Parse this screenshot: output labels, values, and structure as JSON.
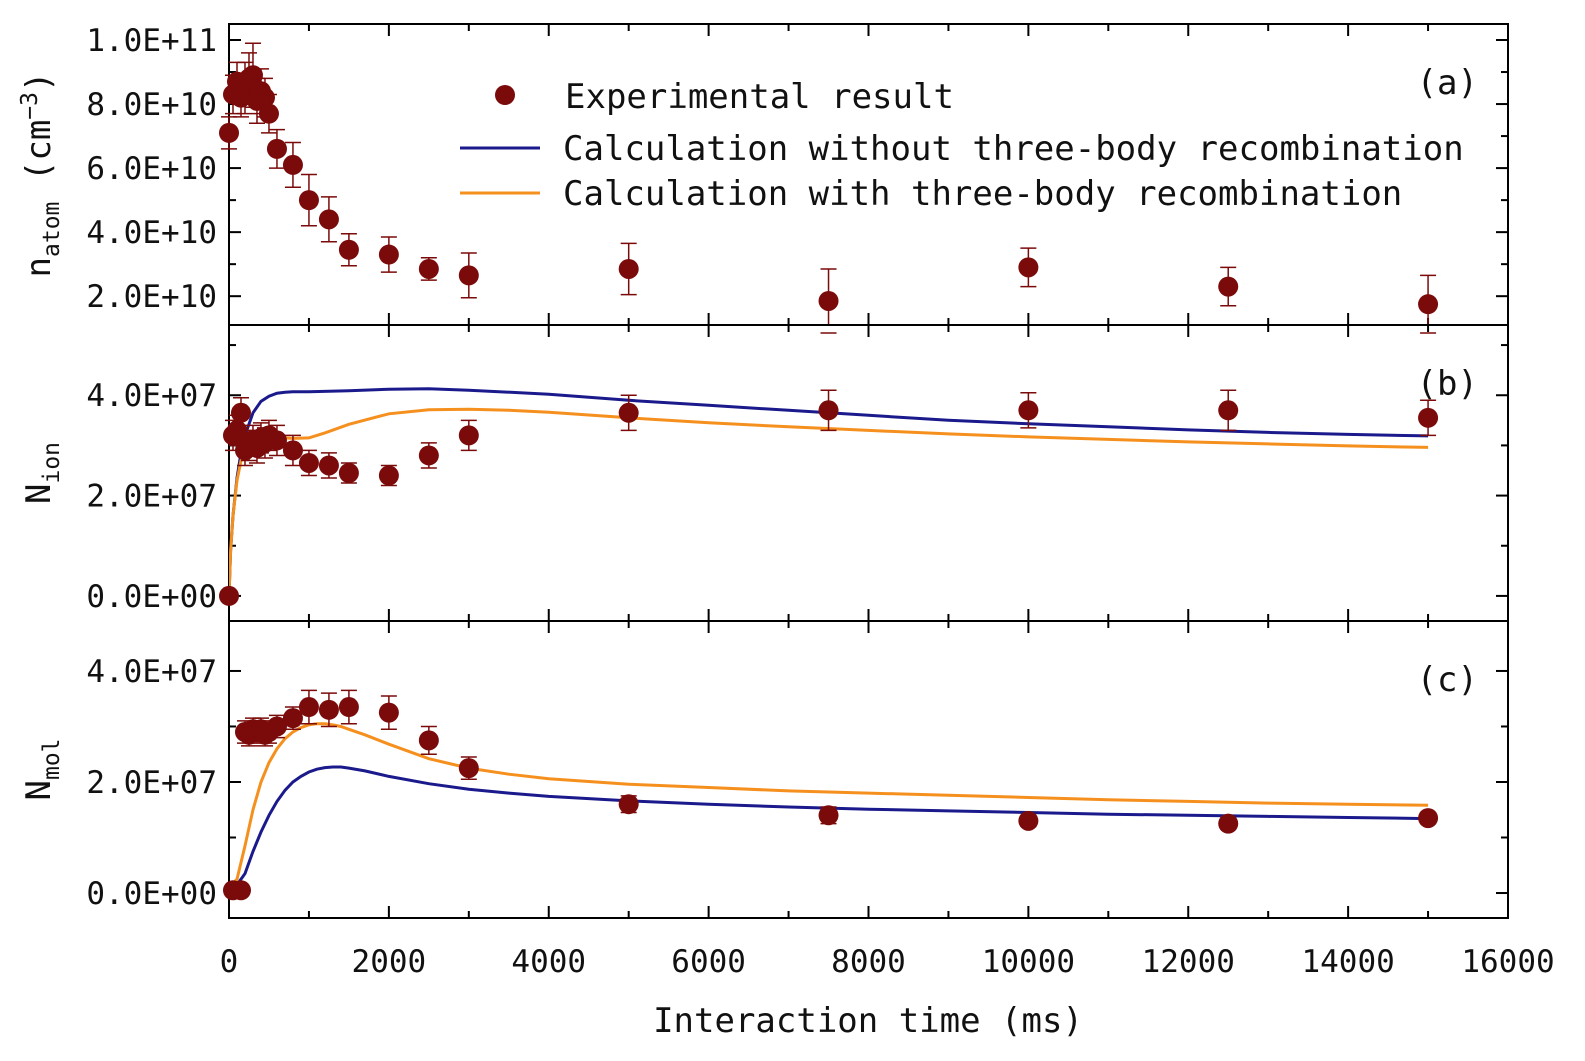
{
  "colors": {
    "experimental": "#7b0a0a",
    "without_3body": "#1a1a8c",
    "with_3body": "#f5901e",
    "axes": "#000000"
  },
  "legend": {
    "items": [
      {
        "label": "Experimental result",
        "marker": "circle",
        "color": "#7b0a0a"
      },
      {
        "label": "Calculation without three-body recombination",
        "marker": "line",
        "color": "#1a1a8c"
      },
      {
        "label": "Calculation with three-body recombination",
        "marker": "line",
        "color": "#f5901e"
      }
    ]
  },
  "xaxis": {
    "title": "Interaction time (ms)",
    "range": [
      0,
      16000
    ],
    "ticks": [
      0,
      2000,
      4000,
      6000,
      8000,
      10000,
      12000,
      14000,
      16000
    ],
    "tick_labels": [
      "0",
      "2000",
      "4000",
      "6000",
      "8000",
      "10000",
      "12000",
      "14000",
      "16000"
    ]
  },
  "chart_data": [
    {
      "type": "scatter",
      "panel": "(a)",
      "ylabel": {
        "base": "n",
        "sub": "atom",
        "paren_open": "(cm",
        "sup": "−3",
        "paren_close": ")"
      },
      "ylim": [
        11000000000.0,
        105000000000.0
      ],
      "yticks": [
        20000000000.0,
        40000000000.0,
        60000000000.0,
        80000000000.0,
        100000000000.0
      ],
      "ytick_labels": [
        "2.0E+10",
        "4.0E+10",
        "6.0E+10",
        "8.0E+10",
        "1.0E+11"
      ],
      "series": [
        {
          "name": "Experimental result",
          "points": [
            {
              "x": 0,
              "y": 71000000000.0,
              "err": 5000000000.0
            },
            {
              "x": 50,
              "y": 83000000000.0,
              "err": 6000000000.0
            },
            {
              "x": 100,
              "y": 87000000000.0,
              "err": 6000000000.0
            },
            {
              "x": 150,
              "y": 82000000000.0,
              "err": 6000000000.0
            },
            {
              "x": 200,
              "y": 85000000000.0,
              "err": 8000000000.0
            },
            {
              "x": 250,
              "y": 88000000000.0,
              "err": 8000000000.0
            },
            {
              "x": 300,
              "y": 89000000000.0,
              "err": 10000000000.0
            },
            {
              "x": 350,
              "y": 81000000000.0,
              "err": 7000000000.0
            },
            {
              "x": 400,
              "y": 84000000000.0,
              "err": 7000000000.0
            },
            {
              "x": 450,
              "y": 82000000000.0,
              "err": 6000000000.0
            },
            {
              "x": 500,
              "y": 77000000000.0,
              "err": 6000000000.0
            },
            {
              "x": 600,
              "y": 66000000000.0,
              "err": 6000000000.0
            },
            {
              "x": 800,
              "y": 61000000000.0,
              "err": 7000000000.0
            },
            {
              "x": 1000,
              "y": 50000000000.0,
              "err": 8000000000.0
            },
            {
              "x": 1250,
              "y": 44000000000.0,
              "err": 7000000000.0
            },
            {
              "x": 1500,
              "y": 34500000000.0,
              "err": 5000000000.0
            },
            {
              "x": 2000,
              "y": 33000000000.0,
              "err": 5500000000.0
            },
            {
              "x": 2500,
              "y": 28500000000.0,
              "err": 3500000000.0
            },
            {
              "x": 3000,
              "y": 26500000000.0,
              "err": 7000000000.0
            },
            {
              "x": 5000,
              "y": 28500000000.0,
              "err": 8000000000.0
            },
            {
              "x": 7500,
              "y": 18500000000.0,
              "err": 10000000000.0
            },
            {
              "x": 10000,
              "y": 29000000000.0,
              "err": 6000000000.0
            },
            {
              "x": 12500,
              "y": 23000000000.0,
              "err": 6000000000.0
            },
            {
              "x": 15000,
              "y": 17500000000.0,
              "err": 9000000000.0
            }
          ]
        }
      ]
    },
    {
      "type": "line",
      "panel": "(b)",
      "ylabel": {
        "base": "N",
        "sub": "ion"
      },
      "ylim": [
        -5000000.0,
        54000000.0
      ],
      "yticks": [
        0,
        20000000.0,
        40000000.0
      ],
      "ytick_labels": [
        "0.0E+00",
        "2.0E+07",
        "4.0E+07"
      ],
      "series": [
        {
          "name": "Experimental result",
          "kind": "scatter",
          "points": [
            {
              "x": 0,
              "y": 0,
              "err": 0
            },
            {
              "x": 50,
              "y": 32000000.0,
              "err": 3000000.0
            },
            {
              "x": 100,
              "y": 33000000.0,
              "err": 3000000.0
            },
            {
              "x": 150,
              "y": 36500000.0,
              "err": 3000000.0
            },
            {
              "x": 200,
              "y": 29000000.0,
              "err": 3000000.0
            },
            {
              "x": 250,
              "y": 30000000.0,
              "err": 3000000.0
            },
            {
              "x": 300,
              "y": 31000000.0,
              "err": 3000000.0
            },
            {
              "x": 350,
              "y": 29500000.0,
              "err": 3000000.0
            },
            {
              "x": 400,
              "y": 31500000.0,
              "err": 3000000.0
            },
            {
              "x": 450,
              "y": 30500000.0,
              "err": 3000000.0
            },
            {
              "x": 500,
              "y": 32000000.0,
              "err": 3000000.0
            },
            {
              "x": 600,
              "y": 31000000.0,
              "err": 3000000.0
            },
            {
              "x": 800,
              "y": 29000000.0,
              "err": 3000000.0
            },
            {
              "x": 1000,
              "y": 26500000.0,
              "err": 2500000.0
            },
            {
              "x": 1250,
              "y": 26000000.0,
              "err": 2500000.0
            },
            {
              "x": 1500,
              "y": 24500000.0,
              "err": 2000000.0
            },
            {
              "x": 2000,
              "y": 24000000.0,
              "err": 2000000.0
            },
            {
              "x": 2500,
              "y": 28000000.0,
              "err": 2500000.0
            },
            {
              "x": 3000,
              "y": 32000000.0,
              "err": 3000000.0
            },
            {
              "x": 5000,
              "y": 36500000.0,
              "err": 3500000.0
            },
            {
              "x": 7500,
              "y": 37000000.0,
              "err": 4000000.0
            },
            {
              "x": 10000,
              "y": 37000000.0,
              "err": 3500000.0
            },
            {
              "x": 12500,
              "y": 37000000.0,
              "err": 4000000.0
            },
            {
              "x": 15000,
              "y": 35500000.0,
              "err": 3500000.0
            }
          ]
        },
        {
          "name": "Calculation without three-body recombination",
          "kind": "line",
          "x": [
            0,
            20,
            50,
            100,
            150,
            200,
            300,
            400,
            500,
            600,
            700,
            800,
            1000,
            1500,
            2000,
            2500,
            3000,
            4000,
            5000,
            6000,
            7000,
            8000,
            9000,
            10000,
            11000,
            12000,
            13000,
            14000,
            15000
          ],
          "y": [
            0,
            9000000.0,
            16000000.0,
            23500000.0,
            28500000.0,
            32000000.0,
            36500000.0,
            38800000.0,
            39800000.0,
            40400000.0,
            40600000.0,
            40700000.0,
            40700000.0,
            40900000.0,
            41200000.0,
            41300000.0,
            41000000.0,
            40200000.0,
            39000000.0,
            38000000.0,
            37000000.0,
            36000000.0,
            35000000.0,
            34300000.0,
            33700000.0,
            33100000.0,
            32600000.0,
            32200000.0,
            31900000.0
          ]
        },
        {
          "name": "Calculation with three-body recombination",
          "kind": "line",
          "x": [
            0,
            20,
            50,
            100,
            150,
            200,
            300,
            400,
            500,
            600,
            700,
            800,
            1000,
            1200,
            1500,
            2000,
            2500,
            3000,
            3500,
            4000,
            5000,
            6000,
            7000,
            8000,
            9000,
            10000,
            11000,
            12000,
            13000,
            14000,
            15000
          ],
          "y": [
            0,
            9000000.0,
            16000000.0,
            23000000.0,
            27000000.0,
            29500000.0,
            31500000.0,
            32000000.0,
            32000000.0,
            31800000.0,
            31500000.0,
            31400000.0,
            31500000.0,
            32500000.0,
            34200000.0,
            36300000.0,
            37100000.0,
            37200000.0,
            37000000.0,
            36600000.0,
            35500000.0,
            34500000.0,
            33700000.0,
            33000000.0,
            32300000.0,
            31700000.0,
            31200000.0,
            30700000.0,
            30300000.0,
            29900000.0,
            29600000.0
          ]
        }
      ]
    },
    {
      "type": "line",
      "panel": "(c)",
      "ylabel": {
        "base": "N",
        "sub": "mol"
      },
      "ylim": [
        -4500000.0,
        49000000.0
      ],
      "yticks": [
        0,
        20000000.0,
        40000000.0
      ],
      "ytick_labels": [
        "0.0E+00",
        "2.0E+07",
        "4.0E+07"
      ],
      "series": [
        {
          "name": "Experimental result",
          "kind": "scatter",
          "points": [
            {
              "x": 50,
              "y": 500000.0,
              "err": 0
            },
            {
              "x": 150,
              "y": 500000.0,
              "err": 0
            },
            {
              "x": 200,
              "y": 29000000.0,
              "err": 2000000.0
            },
            {
              "x": 250,
              "y": 28500000.0,
              "err": 2000000.0
            },
            {
              "x": 300,
              "y": 29500000.0,
              "err": 2000000.0
            },
            {
              "x": 350,
              "y": 29000000.0,
              "err": 2000000.0
            },
            {
              "x": 400,
              "y": 29500000.0,
              "err": 2000000.0
            },
            {
              "x": 450,
              "y": 28500000.0,
              "err": 2000000.0
            },
            {
              "x": 500,
              "y": 29000000.0,
              "err": 2000000.0
            },
            {
              "x": 600,
              "y": 30000000.0,
              "err": 2000000.0
            },
            {
              "x": 800,
              "y": 31500000.0,
              "err": 2000000.0
            },
            {
              "x": 1000,
              "y": 33500000.0,
              "err": 3000000.0
            },
            {
              "x": 1250,
              "y": 33000000.0,
              "err": 3000000.0
            },
            {
              "x": 1500,
              "y": 33500000.0,
              "err": 3000000.0
            },
            {
              "x": 2000,
              "y": 32500000.0,
              "err": 3000000.0
            },
            {
              "x": 2500,
              "y": 27500000.0,
              "err": 2500000.0
            },
            {
              "x": 3000,
              "y": 22500000.0,
              "err": 2000000.0
            },
            {
              "x": 5000,
              "y": 16000000.0,
              "err": 1500000.0
            },
            {
              "x": 7500,
              "y": 14000000.0,
              "err": 1500000.0
            },
            {
              "x": 10000,
              "y": 13000000.0,
              "err": 1000000.0
            },
            {
              "x": 12500,
              "y": 12500000.0,
              "err": 1000000.0
            },
            {
              "x": 15000,
              "y": 13500000.0,
              "err": 1000000.0
            }
          ]
        },
        {
          "name": "Calculation without three-body recombination",
          "kind": "line",
          "x": [
            0,
            100,
            200,
            300,
            400,
            500,
            600,
            700,
            800,
            900,
            1000,
            1100,
            1200,
            1300,
            1400,
            1500,
            1700,
            2000,
            2500,
            3000,
            3500,
            4000,
            5000,
            6000,
            7000,
            8000,
            9000,
            10000,
            11000,
            12000,
            13000,
            14000,
            15000
          ],
          "y": [
            1000000.0,
            1500000.0,
            3500000.0,
            7500000.0,
            11000000.0,
            14000000.0,
            16500000.0,
            18500000.0,
            20000000.0,
            21000000.0,
            21800000.0,
            22300000.0,
            22600000.0,
            22700000.0,
            22700000.0,
            22500000.0,
            22000000.0,
            21000000.0,
            19700000.0,
            18700000.0,
            18000000.0,
            17400000.0,
            16600000.0,
            16000000.0,
            15500000.0,
            15100000.0,
            14800000.0,
            14500000.0,
            14200000.0,
            14000000.0,
            13800000.0,
            13600000.0,
            13400000.0
          ]
        },
        {
          "name": "Calculation with three-body recombination",
          "kind": "line",
          "x": [
            0,
            100,
            200,
            300,
            400,
            500,
            600,
            700,
            800,
            900,
            1000,
            1100,
            1200,
            1300,
            1400,
            1500,
            1700,
            2000,
            2500,
            3000,
            3500,
            4000,
            5000,
            6000,
            7000,
            8000,
            9000,
            10000,
            11000,
            12000,
            13000,
            14000,
            15000
          ],
          "y": [
            1000000.0,
            2500000.0,
            8500000.0,
            15000000.0,
            20000000.0,
            23500000.0,
            26000000.0,
            27800000.0,
            29000000.0,
            29800000.0,
            30300000.0,
            30500000.0,
            30500000.0,
            30300000.0,
            30000000.0,
            29500000.0,
            28500000.0,
            26800000.0,
            24200000.0,
            22500000.0,
            21400000.0,
            20600000.0,
            19600000.0,
            19000000.0,
            18400000.0,
            18000000.0,
            17600000.0,
            17200000.0,
            16800000.0,
            16500000.0,
            16200000.0,
            16000000.0,
            15800000.0
          ]
        }
      ]
    }
  ]
}
